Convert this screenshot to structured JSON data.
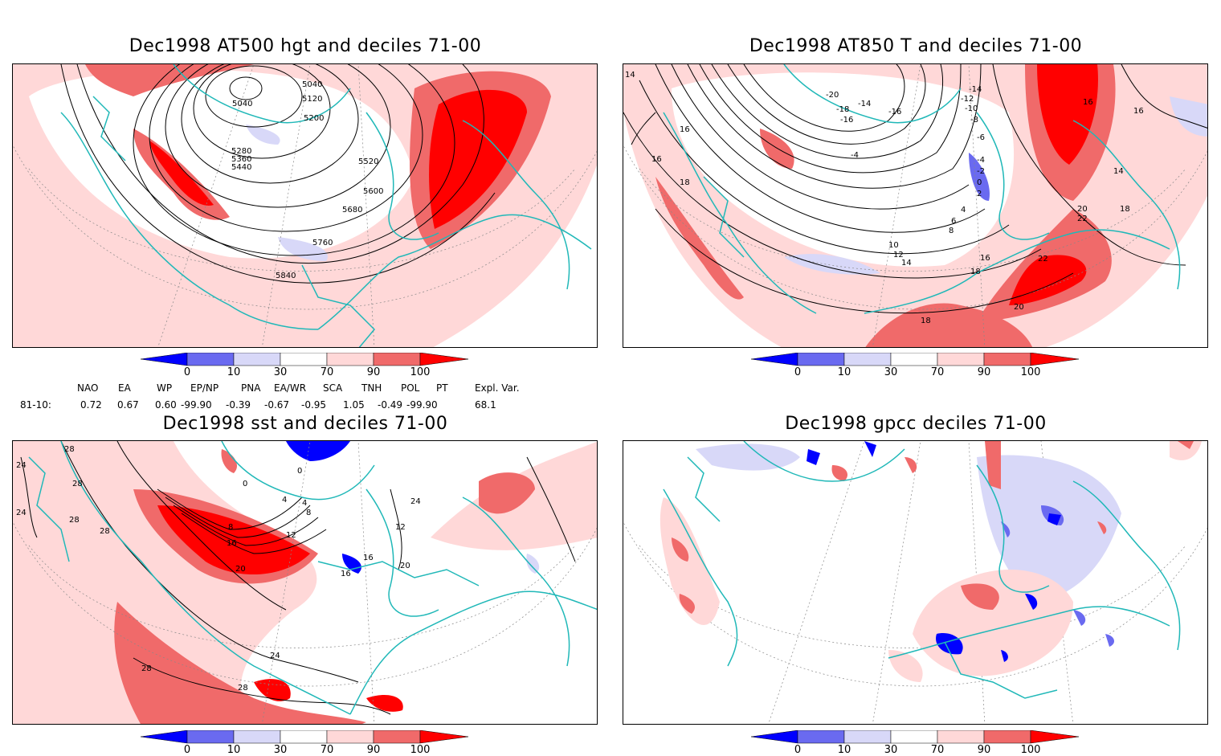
{
  "panels": [
    {
      "id": "p1",
      "title": "Dec1998 AT500 hgt and deciles 71-00",
      "contour_labels": [
        "5040",
        "5040",
        "5120",
        "5200",
        "5280",
        "5360",
        "5440",
        "5520",
        "5600",
        "5680",
        "5760",
        "5840"
      ]
    },
    {
      "id": "p2",
      "title": "Dec1998 AT850 T and deciles 71-00",
      "contour_labels": [
        "14",
        "16",
        "16",
        "18",
        "-20",
        "-18",
        "-16",
        "-14",
        "-16",
        "-14",
        "-12",
        "-10",
        "-8",
        "-6",
        "-4",
        "-4",
        "-2",
        "0",
        "2",
        "4",
        "6",
        "8",
        "10",
        "12",
        "14",
        "16",
        "18",
        "20",
        "22",
        "22",
        "20",
        "18",
        "16",
        "14",
        "16",
        "18"
      ]
    },
    {
      "id": "p3",
      "title": "Dec1998 sst and deciles 71-00",
      "contour_labels": [
        "28",
        "24",
        "28",
        "24",
        "28",
        "28",
        "0",
        "0",
        "4",
        "4",
        "8",
        "8",
        "12",
        "16",
        "20",
        "24",
        "28",
        "28",
        "16",
        "16",
        "20",
        "12",
        "24"
      ]
    },
    {
      "id": "p4",
      "title": "Dec1998 gpcc deciles 71-00",
      "contour_labels": []
    }
  ],
  "colorbar": {
    "labels": [
      "0",
      "10",
      "30",
      "70",
      "90",
      "100"
    ],
    "colors": [
      "#0000ff",
      "#6a6af0",
      "#d8d8f8",
      "#ffffff",
      "#ffd8d8",
      "#f06a6a",
      "#ff0000"
    ]
  },
  "indices": {
    "headers": [
      "NAO",
      "EA",
      "WP",
      "EP/NP",
      "PNA",
      "EA/WR",
      "SCA",
      "TNH",
      "POL",
      "PT",
      "Expl. Var."
    ],
    "row_label": "81-10:",
    "values": [
      "0.72",
      "0.67",
      "0.60",
      "-99.90",
      "-0.39",
      "-0.67",
      "-0.95",
      "1.05",
      "-0.49",
      "-99.90",
      "68.1"
    ]
  },
  "colors": {
    "coast": "#20b8b8",
    "contour": "#000000"
  }
}
